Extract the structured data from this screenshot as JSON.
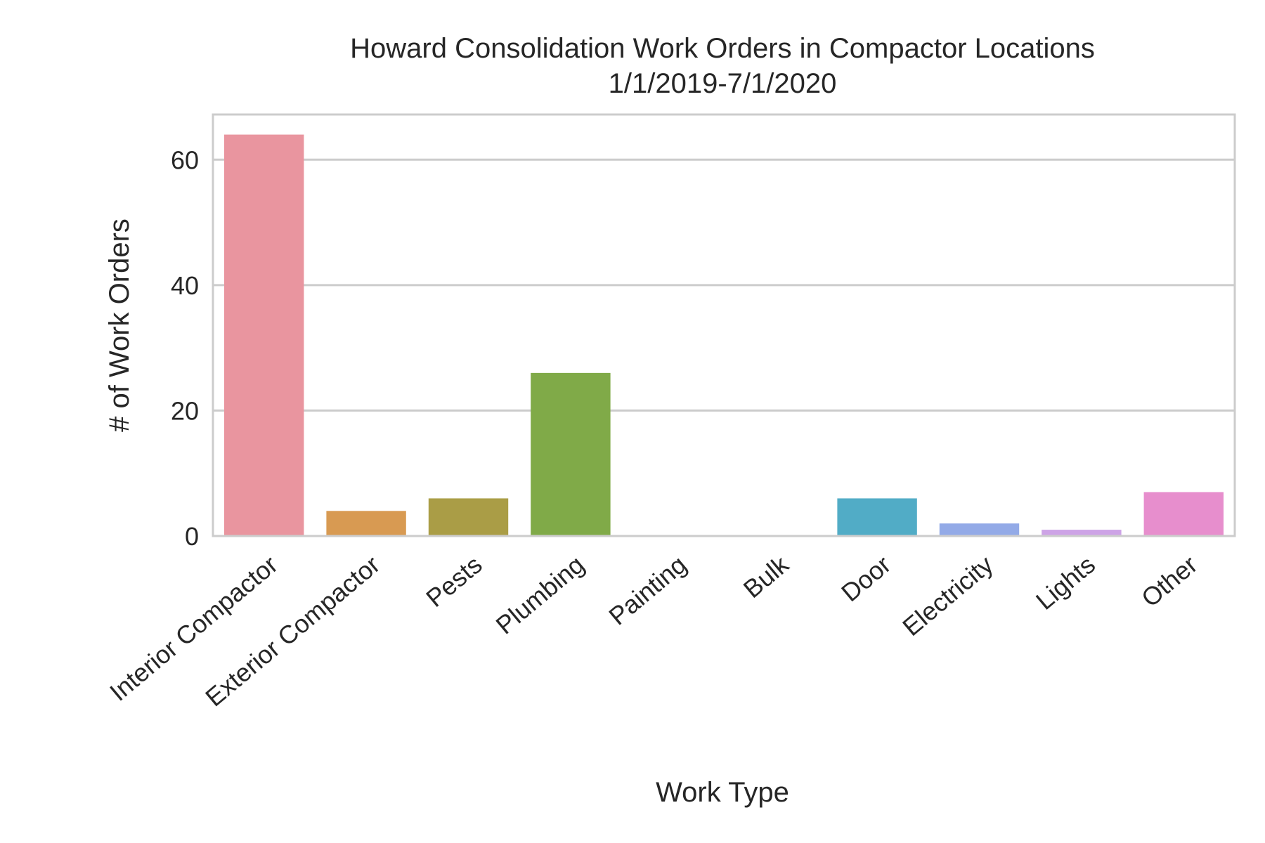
{
  "chart_data": {
    "type": "bar",
    "title": "Howard Consolidation Work Orders in Compactor Locations",
    "subtitle": "1/1/2019-7/1/2020",
    "xlabel": "Work Type",
    "ylabel": "# of Work Orders",
    "categories": [
      "Interior Compactor",
      "Exterior Compactor",
      "Pests",
      "Plumbing",
      "Painting",
      "Bulk",
      "Door",
      "Electricity",
      "Lights",
      "Other"
    ],
    "values": [
      64,
      4,
      6,
      26,
      0,
      0,
      6,
      2,
      1,
      7
    ],
    "colors": [
      "#e9959f",
      "#d89a52",
      "#aa9d46",
      "#80aa48",
      "#4dac74",
      "#52ac9c",
      "#51acc6",
      "#93aae7",
      "#cda3e6",
      "#e78ecd"
    ],
    "yticks": [
      0,
      20,
      40,
      60
    ],
    "ylim": [
      0,
      67.2
    ],
    "grid": true,
    "legend": "none"
  }
}
